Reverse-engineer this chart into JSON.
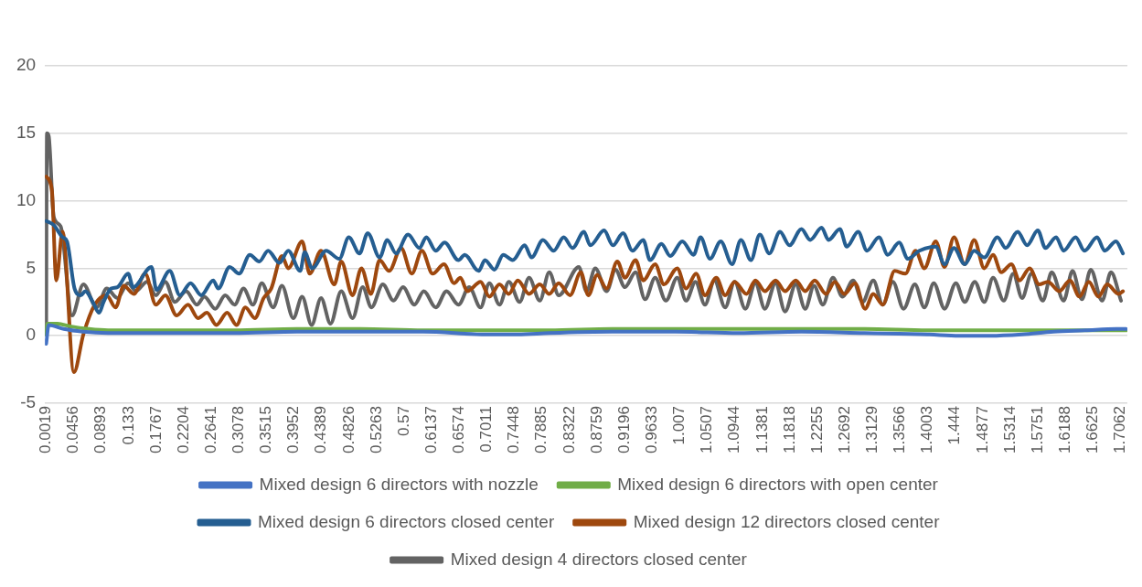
{
  "chart_data": {
    "type": "line",
    "xlim": [
      0,
      1.717
    ],
    "xticks": [
      0.0019,
      0.0456,
      0.0893,
      0.133,
      0.1767,
      0.2204,
      0.2641,
      0.3078,
      0.3515,
      0.3952,
      0.4389,
      0.4826,
      0.5263,
      0.57,
      0.6137,
      0.6574,
      0.7011,
      0.7448,
      0.7885,
      0.8322,
      0.8759,
      0.9196,
      0.9633,
      1.007,
      1.0507,
      1.0944,
      1.1381,
      1.1818,
      1.2255,
      1.2692,
      1.3129,
      1.3566,
      1.4003,
      1.444,
      1.4877,
      1.5314,
      1.5751,
      1.6188,
      1.6625,
      1.7062
    ],
    "ylim": [
      -5,
      20
    ],
    "yticks": [
      -5,
      0,
      5,
      10,
      15,
      20
    ],
    "grid": "y",
    "legend": "bottom",
    "marker": "none",
    "line_style": "solid",
    "series": [
      {
        "name": "Mixed design 6 directors with nozzle",
        "color": "#4472c4",
        "x": [
          0.002,
          0.006,
          0.03,
          0.06,
          0.1,
          0.2,
          0.3,
          0.4,
          0.5,
          0.6,
          0.7,
          0.75,
          0.8,
          0.9,
          1.0,
          1.1,
          1.2,
          1.3,
          1.4,
          1.45,
          1.5,
          1.55,
          1.6,
          1.65,
          1.7,
          1.715
        ],
        "values": [
          -0.6,
          0.8,
          0.5,
          0.3,
          0.2,
          0.2,
          0.2,
          0.3,
          0.3,
          0.3,
          0.1,
          0.1,
          0.2,
          0.3,
          0.3,
          0.2,
          0.3,
          0.2,
          0.1,
          0,
          0,
          0.1,
          0.3,
          0.4,
          0.5,
          0.5
        ]
      },
      {
        "name": "Mixed design 6 directors with open center",
        "color": "#70ad47",
        "x": [
          0.002,
          0.004,
          0.02,
          0.04,
          0.07,
          0.1,
          0.2,
          0.3,
          0.4,
          0.5,
          0.6,
          0.7,
          0.8,
          0.9,
          1.0,
          1.1,
          1.2,
          1.3,
          1.4,
          1.5,
          1.6,
          1.7,
          1.715
        ],
        "values": [
          0.1,
          0.9,
          0.9,
          0.7,
          0.5,
          0.4,
          0.4,
          0.4,
          0.5,
          0.5,
          0.4,
          0.4,
          0.4,
          0.5,
          0.5,
          0.5,
          0.5,
          0.5,
          0.4,
          0.4,
          0.4,
          0.4,
          0.4
        ]
      },
      {
        "name": "Mixed design 6 directors closed center",
        "color": "#255e91",
        "x": [
          0.002,
          0.014,
          0.028,
          0.035,
          0.047,
          0.057,
          0.064,
          0.076,
          0.086,
          0.093,
          0.105,
          0.115,
          0.132,
          0.14,
          0.169,
          0.177,
          0.198,
          0.214,
          0.231,
          0.248,
          0.267,
          0.275,
          0.293,
          0.308,
          0.325,
          0.34,
          0.354,
          0.372,
          0.386,
          0.405,
          0.412,
          0.424,
          0.446,
          0.467,
          0.482,
          0.499,
          0.512,
          0.531,
          0.543,
          0.557,
          0.576,
          0.594,
          0.605,
          0.62,
          0.634,
          0.656,
          0.666,
          0.688,
          0.698,
          0.713,
          0.727,
          0.742,
          0.761,
          0.772,
          0.79,
          0.807,
          0.823,
          0.837,
          0.855,
          0.865,
          0.887,
          0.901,
          0.917,
          0.932,
          0.949,
          0.96,
          0.978,
          0.992,
          1.011,
          1.029,
          1.04,
          1.055,
          1.072,
          1.09,
          1.104,
          1.12,
          1.134,
          1.149,
          1.166,
          1.181,
          1.2,
          1.214,
          1.232,
          1.243,
          1.261,
          1.272,
          1.29,
          1.304,
          1.323,
          1.337,
          1.355,
          1.369,
          1.387,
          1.413,
          1.427,
          1.442,
          1.459,
          1.474,
          1.49,
          1.511,
          1.524,
          1.543,
          1.558,
          1.575,
          1.587,
          1.604,
          1.616,
          1.635,
          1.649,
          1.669,
          1.681,
          1.699,
          1.71
        ],
        "values": [
          8.5,
          8.2,
          7.3,
          7.0,
          3.5,
          3.0,
          3.3,
          2.5,
          1.7,
          2.5,
          3.5,
          3.6,
          4.6,
          3.6,
          5.1,
          3.4,
          4.8,
          3.0,
          3.9,
          3.0,
          4.1,
          3.5,
          5.1,
          4.6,
          6.0,
          5.5,
          6.3,
          5.4,
          6.3,
          4.8,
          6.2,
          5.0,
          6.3,
          5.7,
          7.3,
          6.1,
          7.6,
          5.8,
          7.1,
          6.1,
          7.5,
          6.5,
          7.3,
          6.3,
          6.9,
          5.6,
          6.0,
          4.8,
          5.6,
          4.9,
          6.0,
          5.6,
          6.7,
          5.8,
          7.1,
          6.3,
          7.3,
          6.5,
          7.7,
          6.7,
          7.8,
          6.7,
          7.6,
          6.3,
          7.1,
          5.6,
          6.8,
          5.9,
          7.0,
          6.0,
          7.3,
          5.7,
          7.0,
          5.3,
          7.1,
          5.6,
          7.5,
          6.1,
          7.7,
          6.7,
          7.9,
          7.1,
          8.0,
          7.1,
          7.9,
          6.6,
          7.7,
          6.3,
          7.3,
          6.0,
          6.9,
          5.7,
          6.3,
          6.6,
          5.3,
          6.5,
          5.3,
          6.3,
          5.8,
          7.3,
          6.5,
          7.7,
          6.7,
          7.8,
          6.5,
          7.3,
          6.3,
          7.3,
          6.3,
          7.3,
          6.3,
          7.0,
          6.1
        ]
      },
      {
        "name": "Mixed design 12 directors closed center",
        "color": "#9e480e",
        "x": [
          0.002,
          0.011,
          0.018,
          0.028,
          0.046,
          0.061,
          0.079,
          0.098,
          0.112,
          0.125,
          0.141,
          0.159,
          0.176,
          0.191,
          0.209,
          0.227,
          0.243,
          0.257,
          0.272,
          0.289,
          0.304,
          0.318,
          0.333,
          0.347,
          0.359,
          0.376,
          0.386,
          0.408,
          0.42,
          0.438,
          0.459,
          0.47,
          0.488,
          0.502,
          0.517,
          0.531,
          0.546,
          0.565,
          0.582,
          0.598,
          0.615,
          0.633,
          0.649,
          0.659,
          0.67,
          0.691,
          0.705,
          0.721,
          0.736,
          0.75,
          0.768,
          0.785,
          0.8,
          0.815,
          0.833,
          0.85,
          0.862,
          0.876,
          0.891,
          0.908,
          0.92,
          0.937,
          0.949,
          0.968,
          0.982,
          1.003,
          1.017,
          1.033,
          1.047,
          1.065,
          1.079,
          1.094,
          1.113,
          1.127,
          1.142,
          1.159,
          1.174,
          1.191,
          1.206,
          1.221,
          1.239,
          1.253,
          1.268,
          1.285,
          1.301,
          1.314,
          1.329,
          1.348,
          1.365,
          1.381,
          1.395,
          1.413,
          1.427,
          1.442,
          1.459,
          1.474,
          1.49,
          1.504,
          1.517,
          1.533,
          1.546,
          1.562,
          1.577,
          1.591,
          1.609,
          1.626,
          1.641,
          1.656,
          1.671,
          1.685,
          1.703,
          1.71
        ],
        "values": [
          11.8,
          10.8,
          4.1,
          7.7,
          -2.7,
          0.1,
          2.3,
          3.0,
          2.1,
          3.7,
          3.1,
          4.6,
          2.3,
          3.0,
          1.5,
          2.3,
          1.3,
          1.7,
          0.8,
          1.7,
          0.8,
          2.1,
          1.3,
          2.8,
          3.5,
          5.9,
          5.0,
          7.0,
          4.6,
          6.3,
          3.8,
          5.5,
          3.0,
          5.0,
          3.1,
          5.6,
          4.8,
          6.5,
          4.6,
          6.3,
          4.6,
          5.3,
          3.9,
          4.3,
          3.3,
          4.0,
          2.9,
          3.8,
          3.1,
          4.1,
          3.1,
          3.8,
          3.1,
          3.9,
          3.0,
          4.7,
          3.0,
          4.5,
          3.5,
          5.5,
          4.3,
          5.6,
          4.1,
          5.3,
          3.8,
          5.0,
          3.5,
          4.6,
          3.0,
          4.3,
          3.0,
          4.0,
          3.1,
          4.1,
          3.3,
          4.1,
          3.3,
          4.1,
          3.3,
          4.1,
          3.1,
          4.0,
          3.1,
          3.9,
          2.0,
          3.1,
          2.3,
          4.8,
          4.6,
          6.3,
          5.0,
          7.0,
          5.1,
          7.3,
          5.3,
          7.1,
          5.0,
          6.0,
          4.7,
          5.3,
          4.1,
          5.0,
          3.8,
          4.0,
          3.3,
          4.1,
          2.9,
          4.0,
          2.9,
          3.8,
          3.1,
          3.3
        ]
      },
      {
        "name": "Mixed design 4 directors closed center",
        "color": "#636363",
        "x": [
          0.002,
          0.003,
          0.006,
          0.014,
          0.025,
          0.043,
          0.061,
          0.082,
          0.098,
          0.115,
          0.132,
          0.144,
          0.162,
          0.176,
          0.191,
          0.206,
          0.224,
          0.241,
          0.253,
          0.27,
          0.286,
          0.301,
          0.315,
          0.33,
          0.344,
          0.362,
          0.376,
          0.394,
          0.408,
          0.423,
          0.438,
          0.453,
          0.47,
          0.488,
          0.504,
          0.518,
          0.536,
          0.553,
          0.568,
          0.586,
          0.601,
          0.62,
          0.637,
          0.656,
          0.673,
          0.691,
          0.705,
          0.721,
          0.736,
          0.753,
          0.768,
          0.785,
          0.8,
          0.815,
          0.847,
          0.859,
          0.873,
          0.891,
          0.905,
          0.92,
          0.937,
          0.952,
          0.968,
          0.985,
          1.003,
          1.017,
          1.032,
          1.047,
          1.062,
          1.079,
          1.094,
          1.111,
          1.127,
          1.142,
          1.159,
          1.174,
          1.191,
          1.206,
          1.22,
          1.234,
          1.25,
          1.265,
          1.282,
          1.297,
          1.314,
          1.329,
          1.345,
          1.362,
          1.38,
          1.395,
          1.41,
          1.427,
          1.445,
          1.459,
          1.475,
          1.49,
          1.504,
          1.521,
          1.536,
          1.55,
          1.565,
          1.583,
          1.597,
          1.616,
          1.63,
          1.645,
          1.659,
          1.677,
          1.691,
          1.707
        ],
        "values": [
          0.1,
          15.0,
          14.8,
          8.8,
          8.1,
          1.5,
          3.8,
          2.1,
          3.5,
          2.8,
          3.9,
          3.3,
          4.0,
          3.0,
          4.0,
          2.5,
          3.3,
          2.3,
          2.9,
          2.0,
          3.0,
          2.3,
          3.5,
          2.3,
          3.9,
          2.1,
          3.7,
          1.3,
          2.9,
          0.8,
          2.8,
          0.9,
          3.3,
          1.3,
          3.6,
          2.1,
          3.8,
          2.6,
          3.6,
          2.3,
          3.3,
          2.1,
          3.3,
          2.3,
          3.6,
          2.1,
          3.9,
          2.3,
          4.0,
          2.5,
          4.3,
          2.6,
          4.7,
          3.0,
          5.1,
          3.3,
          5.0,
          3.3,
          4.9,
          3.6,
          4.7,
          2.7,
          4.3,
          2.6,
          4.3,
          2.6,
          4.0,
          2.3,
          4.1,
          2.1,
          4.0,
          2.0,
          3.9,
          2.0,
          3.9,
          1.8,
          3.8,
          2.0,
          3.7,
          2.3,
          4.3,
          2.9,
          4.1,
          2.5,
          4.1,
          2.3,
          4.0,
          2.0,
          3.8,
          2.1,
          3.9,
          2.0,
          3.9,
          2.5,
          4.0,
          2.5,
          4.3,
          2.6,
          4.6,
          2.8,
          4.6,
          2.6,
          4.7,
          2.6,
          4.8,
          2.7,
          4.9,
          2.6,
          4.7,
          2.6
        ]
      }
    ]
  }
}
